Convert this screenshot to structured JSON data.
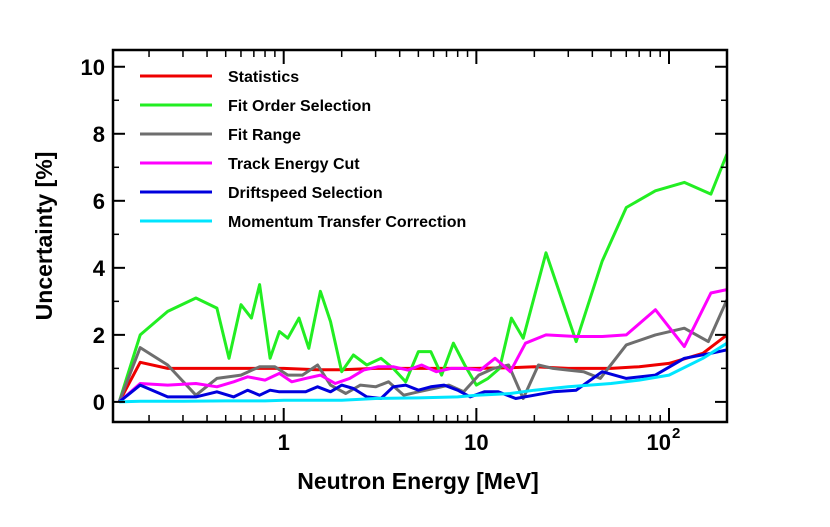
{
  "chart_data": {
    "type": "line",
    "title": "",
    "xlabel": "Neutron Energy [MeV]",
    "ylabel": "Uncertainty [%]",
    "xscale": "log",
    "xlim": [
      0.13,
      200
    ],
    "ylim": [
      -0.6,
      10.5
    ],
    "legend_position": "top-left",
    "y_ticks": [
      {
        "value": 0,
        "label": "0"
      },
      {
        "value": 2,
        "label": "2"
      },
      {
        "value": 4,
        "label": "4"
      },
      {
        "value": 6,
        "label": "6"
      },
      {
        "value": 8,
        "label": "8"
      },
      {
        "value": 10,
        "label": "10"
      }
    ],
    "x_ticks": [
      {
        "value": 1,
        "label": "1"
      },
      {
        "value": 10,
        "label": "10"
      }
    ],
    "x_tick_100": {
      "value": 100,
      "base": "10",
      "exponent": "2"
    },
    "series": [
      {
        "name": "Statistics",
        "color": "#ee0000",
        "x": [
          0.14,
          0.18,
          0.25,
          0.35,
          0.5,
          0.7,
          1.0,
          1.5,
          2.0,
          3.0,
          5.0,
          7.0,
          10,
          15,
          20,
          30,
          50,
          70,
          100,
          150,
          200
        ],
        "y": [
          0.0,
          1.18,
          1.0,
          1.0,
          1.0,
          1.0,
          1.0,
          0.96,
          0.96,
          1.0,
          1.0,
          1.0,
          1.0,
          1.02,
          1.05,
          1.0,
          1.0,
          1.05,
          1.15,
          1.45,
          2.0
        ]
      },
      {
        "name": "Fit Order Selection",
        "color": "#22ee22",
        "x": [
          0.14,
          0.18,
          0.25,
          0.35,
          0.45,
          0.52,
          0.6,
          0.68,
          0.75,
          0.85,
          0.95,
          1.05,
          1.2,
          1.35,
          1.55,
          1.75,
          2.0,
          2.3,
          2.7,
          3.2,
          3.7,
          4.3,
          5.0,
          5.8,
          6.6,
          7.6,
          8.7,
          10.0,
          11.5,
          13.2,
          15.2,
          17.5,
          23,
          33,
          45,
          60,
          85,
          120,
          165,
          200
        ],
        "y": [
          0.0,
          2.0,
          2.7,
          3.1,
          2.8,
          1.3,
          2.9,
          2.5,
          3.5,
          1.3,
          2.1,
          1.9,
          2.5,
          1.6,
          3.3,
          2.4,
          0.9,
          1.4,
          1.1,
          1.3,
          1.0,
          0.6,
          1.5,
          1.5,
          0.8,
          1.75,
          1.1,
          0.5,
          0.7,
          1.0,
          2.5,
          1.9,
          4.45,
          1.8,
          4.2,
          5.8,
          6.3,
          6.55,
          6.2,
          7.4
        ]
      },
      {
        "name": "Fit Range",
        "color": "#6e6e6e",
        "x": [
          0.14,
          0.18,
          0.25,
          0.35,
          0.45,
          0.6,
          0.75,
          0.9,
          1.05,
          1.25,
          1.5,
          1.75,
          2.1,
          2.5,
          3.0,
          3.5,
          4.2,
          5.0,
          6.0,
          7.2,
          8.6,
          10.3,
          12.3,
          14.7,
          17.5,
          21,
          25,
          30,
          36,
          44,
          60,
          85,
          120,
          160,
          200
        ],
        "y": [
          0.0,
          1.62,
          1.1,
          0.2,
          0.7,
          0.8,
          1.05,
          1.05,
          0.8,
          0.8,
          1.1,
          0.5,
          0.25,
          0.5,
          0.45,
          0.6,
          0.2,
          0.3,
          0.4,
          0.5,
          0.3,
          0.8,
          1.0,
          1.1,
          0.1,
          1.1,
          1.0,
          0.95,
          0.9,
          0.7,
          1.7,
          2.0,
          2.2,
          1.8,
          3.05
        ]
      },
      {
        "name": "Track Energy Cut",
        "color": "#ff00ff",
        "x": [
          0.14,
          0.18,
          0.25,
          0.35,
          0.45,
          0.55,
          0.65,
          0.8,
          0.95,
          1.1,
          1.3,
          1.55,
          1.85,
          2.2,
          2.6,
          3.1,
          3.7,
          4.4,
          5.2,
          6.2,
          7.4,
          8.8,
          10.5,
          12.5,
          15,
          18,
          23,
          33,
          45,
          60,
          85,
          120,
          165,
          200
        ],
        "y": [
          0.0,
          0.55,
          0.5,
          0.55,
          0.45,
          0.6,
          0.75,
          0.65,
          0.85,
          0.6,
          0.7,
          0.8,
          0.55,
          0.7,
          0.95,
          1.05,
          1.05,
          0.95,
          1.1,
          0.9,
          1.0,
          1.0,
          0.95,
          1.3,
          0.9,
          1.75,
          2.0,
          1.95,
          1.95,
          2.0,
          2.75,
          1.65,
          3.25,
          3.35
        ]
      },
      {
        "name": "Driftspeed Selection",
        "color": "#0000dd",
        "x": [
          0.14,
          0.18,
          0.25,
          0.35,
          0.45,
          0.55,
          0.65,
          0.75,
          0.85,
          0.95,
          1.1,
          1.3,
          1.5,
          1.75,
          2.0,
          2.3,
          2.7,
          3.2,
          3.7,
          4.3,
          5.0,
          5.8,
          6.8,
          8.0,
          9.3,
          11,
          13,
          16,
          20,
          25,
          33,
          45,
          60,
          85,
          120,
          165,
          200
        ],
        "y": [
          0.0,
          0.5,
          0.15,
          0.15,
          0.3,
          0.15,
          0.35,
          0.2,
          0.35,
          0.3,
          0.3,
          0.3,
          0.45,
          0.3,
          0.5,
          0.4,
          0.15,
          0.1,
          0.45,
          0.5,
          0.35,
          0.45,
          0.5,
          0.35,
          0.15,
          0.3,
          0.3,
          0.1,
          0.2,
          0.3,
          0.35,
          0.9,
          0.7,
          0.8,
          1.3,
          1.45,
          1.55
        ]
      },
      {
        "name": "Momentum Transfer Correction",
        "color": "#00e5ff",
        "x": [
          0.14,
          0.18,
          0.3,
          0.5,
          0.8,
          1.0,
          2.0,
          3.0,
          5.0,
          8.0,
          10,
          15,
          20,
          30,
          50,
          70,
          100,
          150,
          200
        ],
        "y": [
          0.0,
          0.02,
          0.02,
          0.03,
          0.03,
          0.05,
          0.05,
          0.1,
          0.12,
          0.15,
          0.2,
          0.25,
          0.35,
          0.45,
          0.55,
          0.65,
          0.8,
          1.3,
          1.75
        ]
      }
    ]
  }
}
